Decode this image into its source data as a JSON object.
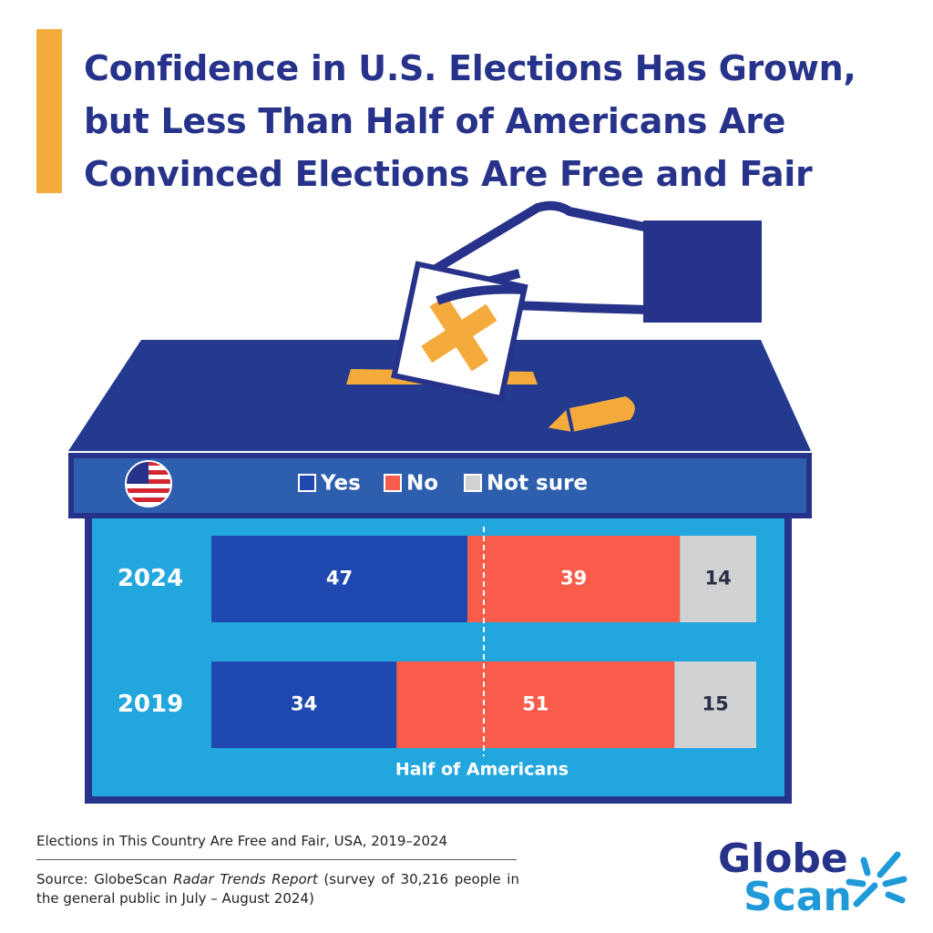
{
  "chart_data": {
    "type": "stacked_barh",
    "title": "Confidence in U.S. Elections Has Grown, but Less Than Half of Americans Are Convinced Elections Are Free and Fair",
    "categories": [
      "2024",
      "2019"
    ],
    "series": [
      {
        "name": "Yes",
        "color": "#1f48b0",
        "label_color": "#ffffff",
        "values": [
          47,
          34
        ]
      },
      {
        "name": "No",
        "color": "#f95c4a",
        "label_color": "#ffffff",
        "values": [
          39,
          51
        ]
      },
      {
        "name": "Not sure",
        "color": "#d1d2d4",
        "label_color": "#2a2f45",
        "values": [
          14,
          15
        ]
      }
    ],
    "xlim": [
      0,
      100
    ],
    "reference_line": {
      "value": 50,
      "label": "Half of Americans"
    },
    "subtitle": "Elections in This Country Are Free and Fair, USA, 2019–2024",
    "source": {
      "prefix": "Source: GlobeScan",
      "italic": "Radar Trends Report",
      "suffix": "(survey of 30,216 people in the general public in July – August 2024)"
    },
    "logo": [
      "Globe",
      "Scan"
    ]
  }
}
